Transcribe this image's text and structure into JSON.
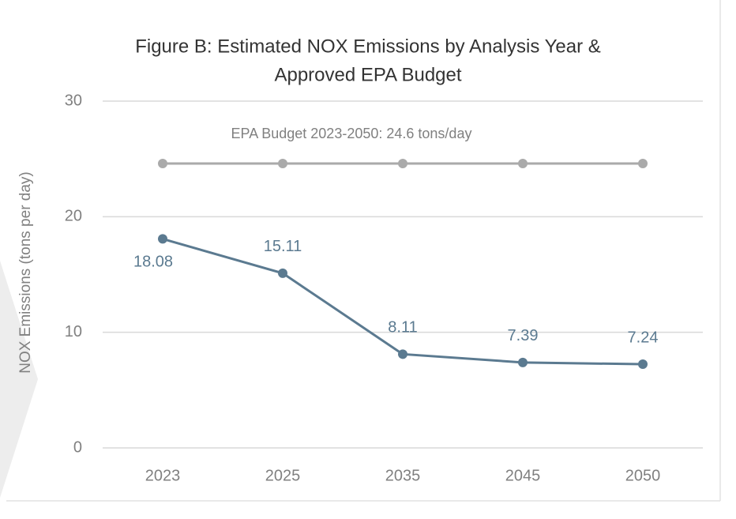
{
  "chart_data": {
    "type": "line",
    "title": [
      "Figure B:  Estimated NOX Emissions by Analysis Year &",
      "Approved EPA Budget"
    ],
    "y_label": "NOX Emissions (tons per day)",
    "annotation": "EPA Budget 2023-2050: 24.6 tons/day",
    "categories": [
      "2023",
      "2025",
      "2035",
      "2045",
      "2050"
    ],
    "series": [
      {
        "color": "#aaaaaa",
        "values": [
          24.6,
          24.6,
          24.6,
          24.6,
          24.6
        ],
        "data_labels": false
      },
      {
        "color": "#5b7a90",
        "values": [
          18.08,
          15.11,
          8.11,
          7.39,
          7.24
        ],
        "data_labels": true
      }
    ],
    "ylim": [
      0,
      30
    ],
    "yticks": [
      0,
      10,
      20,
      30
    ],
    "grid": true
  }
}
